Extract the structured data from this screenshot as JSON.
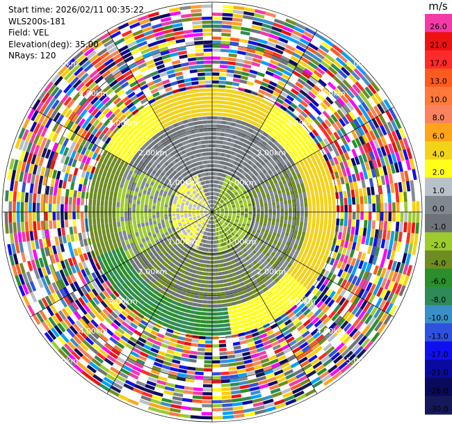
{
  "header": {
    "start_time": "Start time: 2026/02/11 00:35:22",
    "instrument": "WLS200s-181",
    "field": "Field: VEL",
    "elevation": "Elevation(deg): 35.00",
    "nrays": "NRays: 120"
  },
  "colorbar": {
    "unit": "m/s",
    "levels": [
      {
        "label": "26.0",
        "color": "#f33aa6"
      },
      {
        "label": "21.0",
        "color": "#ee1111"
      },
      {
        "label": "17.0",
        "color": "#ff2a2a"
      },
      {
        "label": "13.0",
        "color": "#ff5a1e"
      },
      {
        "label": "10.0",
        "color": "#ff7a3a"
      },
      {
        "label": "8.0",
        "color": "#f8835e"
      },
      {
        "label": "6.0",
        "color": "#ffa419"
      },
      {
        "label": "4.0",
        "color": "#f3d21a"
      },
      {
        "label": "2.0",
        "color": "#ffff19"
      },
      {
        "label": "1.0",
        "color": "#b8c0c8"
      },
      {
        "label": "0.0",
        "color": "#808890"
      },
      {
        "label": "-1.0",
        "color": "#6e7378"
      },
      {
        "label": "-2.0",
        "color": "#9ccb2e"
      },
      {
        "label": "-4.0",
        "color": "#6e8c22"
      },
      {
        "label": "-6.0",
        "color": "#2a8f2a"
      },
      {
        "label": "-8.0",
        "color": "#2e8b57"
      },
      {
        "label": "-10.0",
        "color": "#3a8fc8"
      },
      {
        "label": "-13.0",
        "color": "#3050e0"
      },
      {
        "label": "-17.0",
        "color": "#1010ee"
      },
      {
        "label": "-21.0",
        "color": "#0a0aa0"
      },
      {
        "label": "-26.0",
        "color": "#0a0a5c"
      },
      {
        "label": "-30.0",
        "color": "#15185a"
      }
    ]
  },
  "chart_data": {
    "type": "heatmap",
    "projection": "polar-ppi",
    "field": "VEL",
    "units": "m/s",
    "n_rays": 120,
    "elevation_deg": 35.0,
    "max_range_km": 5.0,
    "range_rings_km": [
      1.0,
      2.0,
      3.0,
      4.0,
      5.0
    ],
    "range_ring_labels": [
      "1.00km",
      "2.00km",
      "3.00km",
      "4.00km",
      "5.00km"
    ],
    "spoke_angles_deg": [
      0,
      30,
      60,
      90,
      120,
      150,
      180,
      210,
      240,
      270,
      300,
      330
    ],
    "velocity_pattern": {
      "near_west_km_0_to_1": 2.0,
      "near_east_km_0_to_1": -2.0,
      "north_ring_km_1_to_3": 4.0,
      "south_ring_km_1_to_3": -6.0,
      "beyond_km": 4.2,
      "beyond_description": "noise"
    }
  }
}
